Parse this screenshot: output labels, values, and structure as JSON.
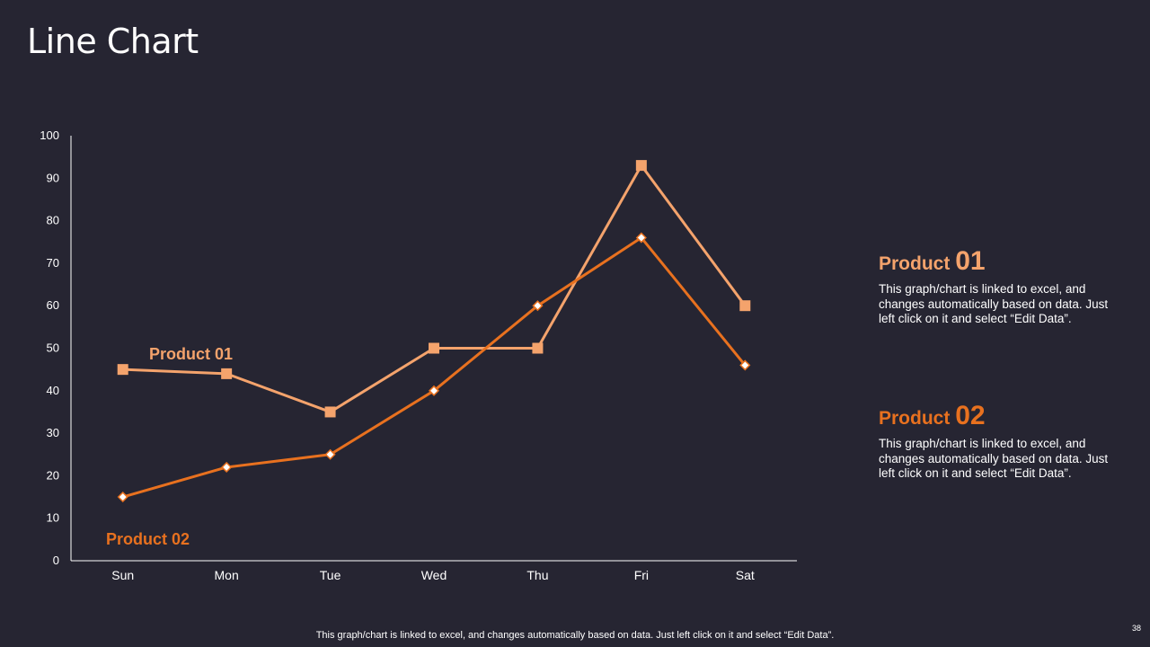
{
  "slide": {
    "title": "Line Chart",
    "footer_note": "This graph/chart is linked to excel, and changes automatically based on data. Just left click on it and select “Edit Data”.",
    "page_number": "38"
  },
  "legend": [
    {
      "name": "Product",
      "num": "01",
      "text": "This graph/chart is linked to excel, and changes automatically based on data. Just left click on it and select “Edit Data”.",
      "color": "#F4A36C"
    },
    {
      "name": "Product",
      "num": "02",
      "text": "This graph/chart is linked to excel, and changes automatically based on data. Just left click on it and select “Edit Data”.",
      "color": "#E8711F"
    }
  ],
  "chart_data": {
    "type": "line",
    "title": "",
    "xlabel": "",
    "ylabel": "",
    "ylim": [
      0,
      100
    ],
    "yticks": [
      0,
      10,
      20,
      30,
      40,
      50,
      60,
      70,
      80,
      90,
      100
    ],
    "categories": [
      "Sun",
      "Mon",
      "Tue",
      "Wed",
      "Thu",
      "Fri",
      "Sat"
    ],
    "series": [
      {
        "name": "Product 01",
        "values": [
          45,
          44,
          35,
          50,
          50,
          93,
          60
        ],
        "color": "#F4A36C",
        "marker": "square"
      },
      {
        "name": "Product 02",
        "values": [
          15,
          22,
          25,
          40,
          60,
          76,
          46
        ],
        "color": "#E8711F",
        "marker": "diamond"
      }
    ]
  }
}
